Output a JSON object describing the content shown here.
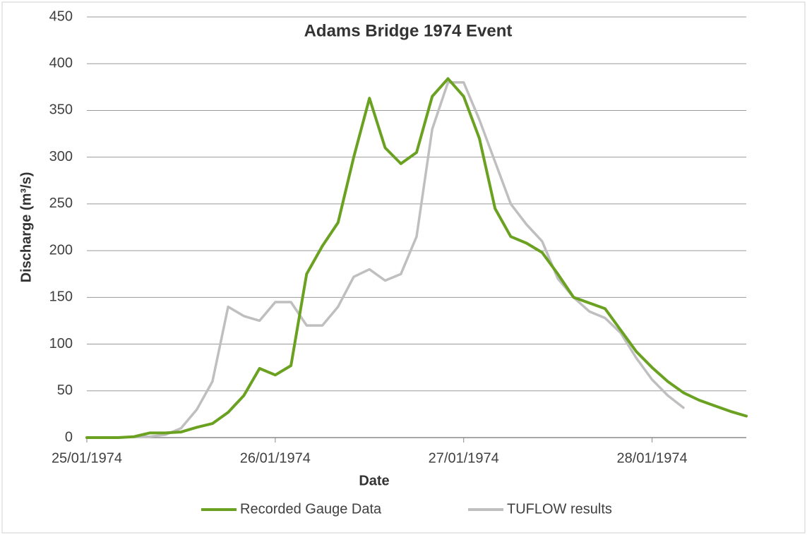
{
  "chart_data": {
    "type": "line",
    "title": "Adams Bridge 1974 Event",
    "x_label": "Date",
    "y_label": "Discharge (m³/s)",
    "categories": [
      "25/01/1974",
      null,
      null,
      null,
      null,
      null,
      null,
      null,
      null,
      null,
      null,
      null,
      "26/01/1974",
      null,
      null,
      null,
      null,
      null,
      null,
      null,
      null,
      null,
      null,
      null,
      "27/01/1974",
      null,
      null,
      null,
      null,
      null,
      null,
      null,
      null,
      null,
      null,
      null,
      "28/01/1974",
      null,
      null,
      null,
      null,
      null,
      null
    ],
    "series": [
      {
        "name": "Recorded Gauge Data",
        "color": "#6aa121",
        "values": [
          0,
          0,
          0,
          1,
          5,
          5,
          6,
          11,
          15,
          27,
          45,
          74,
          67,
          77,
          175,
          205,
          230,
          300,
          363,
          310,
          293,
          305,
          365,
          384,
          365,
          320,
          245,
          215,
          208,
          198,
          175,
          150,
          144,
          138,
          115,
          92,
          75,
          60,
          48,
          40,
          34,
          28,
          23
        ]
      },
      {
        "name": "TUFLOW results",
        "color": "#bfbfbf",
        "values": [
          null,
          null,
          null,
          1,
          1,
          3,
          10,
          30,
          60,
          140,
          130,
          125,
          145,
          145,
          120,
          120,
          140,
          172,
          180,
          168,
          175,
          215,
          330,
          380,
          380,
          340,
          295,
          250,
          228,
          210,
          170,
          150,
          135,
          128,
          112,
          85,
          62,
          45,
          32,
          null,
          null,
          null,
          null
        ]
      }
    ],
    "ylim": [
      0,
      450
    ],
    "yticks": [
      0,
      50,
      100,
      150,
      200,
      250,
      300,
      350,
      400,
      450
    ],
    "grid": true,
    "legend": "bottom"
  }
}
